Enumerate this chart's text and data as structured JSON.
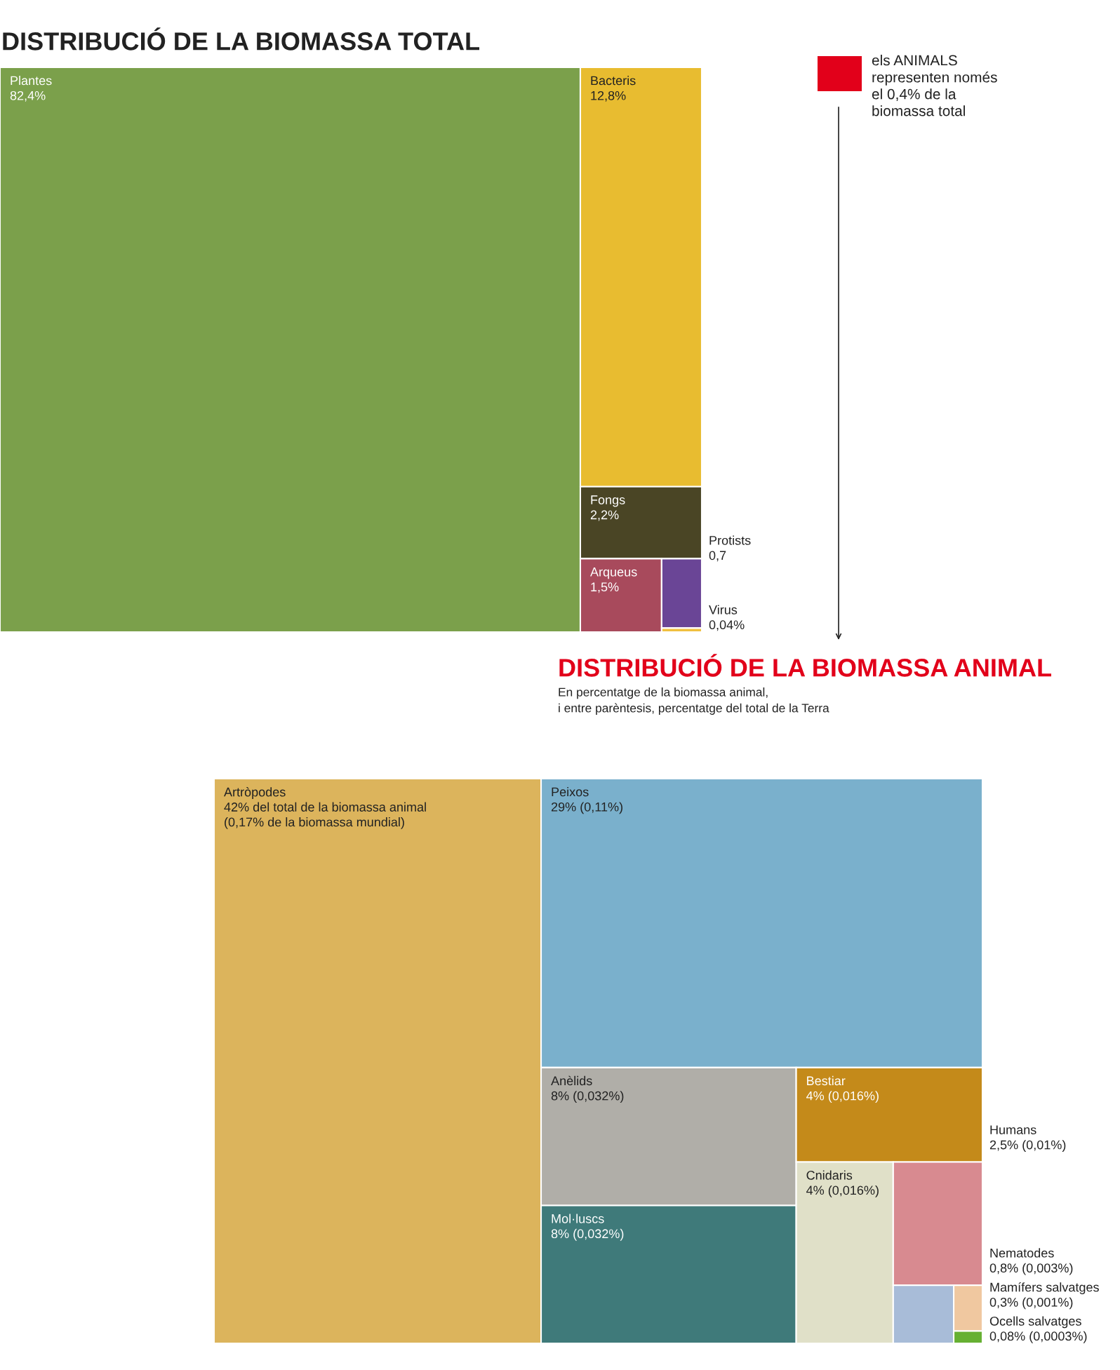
{
  "chart_data": [
    {
      "type": "other",
      "title": "DISTRIBUCIÓ DE LA BIOMASSA TOTAL",
      "categories": [
        "Plantes",
        "Bacteris",
        "Fongs",
        "Arqueus",
        "Protists",
        "Virus"
      ],
      "values": [
        82.4,
        12.8,
        2.2,
        1.5,
        0.7,
        0.04
      ],
      "colors": [
        "#7ba04b",
        "#e8bc30",
        "#4a4525",
        "#a84a5c",
        "#6a4596",
        "#f0c040"
      ],
      "value_labels": [
        "82,4%",
        "12,8%",
        "2,2%",
        "1,5%",
        "0,7",
        "0,04%"
      ],
      "annotations": [
        "els ANIMALS\nrepresenten només\nel 0,4% de la\nbiomassa total"
      ]
    },
    {
      "type": "other",
      "title": "DISTRIBUCIÓ DE LA BIOMASSA ANIMAL",
      "subtitle": "En percentatge de la biomassa animal,\ni entre parèntesis, percentatge del total de la Terra",
      "categories": [
        "Artròpodes",
        "Peixos",
        "Anèlids",
        "Mol·luscs",
        "Bestiar",
        "Cnidaris",
        "Humans",
        "Nematodes",
        "Mamífers salvatges",
        "Ocells salvatges"
      ],
      "values": [
        42,
        29,
        8,
        8,
        4,
        4,
        2.5,
        0.8,
        0.3,
        0.08
      ],
      "colors": [
        "#dcb45c",
        "#7ab0cc",
        "#b0aea8",
        "#3f7a7a",
        "#c48a1a",
        "#e0e0c8",
        "#d88a90",
        "#a8bcd8",
        "#f0c8a0",
        "#66b032"
      ],
      "value_labels": [
        "42% del total de la biomassa animal\n(0,17% de la biomassa mundial)",
        "29% (0,11%)",
        "8% (0,032%)",
        "8% (0,032%)",
        "4% (0,016%)",
        "4% (0,016%)",
        "2,5% (0,01%)",
        "0,8% (0,003%)",
        "0,3% (0,001%)",
        "0,08% (0,0003%)"
      ]
    }
  ]
}
